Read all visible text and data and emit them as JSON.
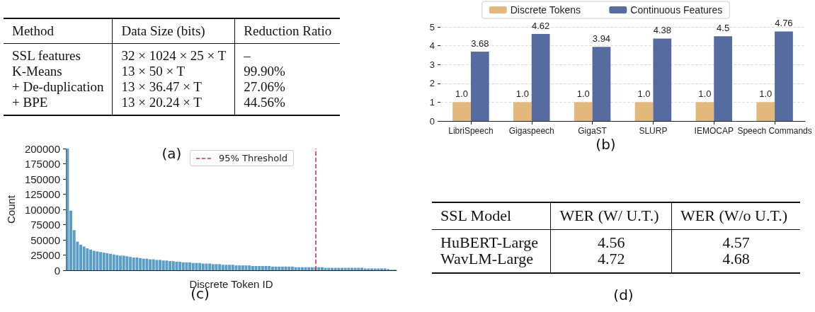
{
  "chart_data": [
    {
      "type": "other",
      "categories": [
        "Method",
        "Data Size (bits)",
        "Reduction Ratio"
      ],
      "cell_labels": [
        [
          "SSL features",
          "32 × 1024 × 25 × T",
          "–"
        ],
        [
          "K-Means",
          "13 × 50 × T",
          "99.90%"
        ],
        [
          "+ De-duplication",
          "13 × 36.47 × T",
          "27.06%"
        ],
        [
          "+ BPE",
          "13 × 20.24 × T",
          "44.56%"
        ]
      ],
      "annotations": [
        "(a)"
      ]
    },
    {
      "type": "bar",
      "categories": [
        "LibriSpeech",
        "Gigaspeech",
        "GigaST",
        "SLURP",
        "IEMOCAP",
        "Speech Commands"
      ],
      "series": [
        {
          "name": "Discrete Tokens",
          "color": "#e3b87c",
          "values": [
            1.0,
            1.0,
            1.0,
            1.0,
            1.0,
            1.0
          ],
          "value_labels": [
            "1.0",
            "1.0",
            "1.0",
            "1.0",
            "1.0",
            "1.0"
          ]
        },
        {
          "name": "Continuous Features",
          "color": "#566b9f",
          "values": [
            3.68,
            4.62,
            3.94,
            4.38,
            4.5,
            4.76
          ],
          "value_labels": [
            "3.68",
            "4.62",
            "3.94",
            "4.38",
            "4.5",
            "4.76"
          ]
        }
      ],
      "ylim": [
        0,
        5
      ],
      "yticks": [
        0,
        1,
        2,
        3,
        4,
        5
      ],
      "grid": "y",
      "legend": "top",
      "annotations": [
        "(b)"
      ]
    },
    {
      "type": "bar",
      "categories": [
        null,
        null,
        null,
        null,
        null,
        null,
        null,
        null,
        null,
        null,
        null,
        null,
        null,
        null,
        null,
        null,
        null,
        null,
        null,
        null,
        null,
        null,
        null,
        null,
        null,
        null,
        null,
        null,
        null,
        null,
        null,
        null,
        null,
        null,
        null,
        null,
        null,
        null,
        null,
        null,
        null,
        null,
        null,
        null,
        null,
        null,
        null,
        null,
        null,
        null,
        null,
        null,
        null,
        null,
        null,
        null,
        null,
        null,
        null,
        null,
        null,
        null,
        null,
        null,
        null,
        null,
        null,
        null,
        null,
        null,
        null,
        null,
        null,
        null,
        null,
        null,
        null,
        null,
        null,
        null,
        null,
        null,
        null,
        null,
        null,
        null,
        null,
        null,
        null,
        null,
        null,
        null,
        null,
        null,
        null,
        null,
        null,
        null,
        null,
        null
      ],
      "values": [
        200000,
        98000,
        66000,
        47000,
        42000,
        39000,
        36000,
        34000,
        32000,
        31000,
        30000,
        29000,
        28000,
        27000,
        26000,
        25000,
        24000,
        24000,
        23000,
        22000,
        21000,
        21000,
        20000,
        19000,
        19000,
        18000,
        18000,
        17000,
        17000,
        16000,
        16000,
        15000,
        15000,
        14000,
        14000,
        13000,
        13000,
        13000,
        12000,
        12000,
        12000,
        11000,
        11000,
        11000,
        10000,
        10000,
        10000,
        9000,
        9000,
        9000,
        9000,
        8000,
        8000,
        8000,
        8000,
        8000,
        7000,
        7000,
        7000,
        7000,
        7000,
        7000,
        6000,
        6000,
        6000,
        6000,
        6000,
        6000,
        6000,
        5000,
        5000,
        5000,
        5000,
        5000,
        5000,
        5000,
        5000,
        5000,
        4000,
        4000,
        4000,
        4000,
        4000,
        4000,
        4000,
        4000,
        4000,
        4000,
        4000,
        4000,
        3000,
        3000,
        3000,
        3000,
        3000,
        3000,
        3000,
        2000,
        1000,
        1000
      ],
      "color": "#5b9cc9",
      "xlabel": "Discrete Token ID",
      "ylabel": "Count",
      "ylim": [
        0,
        200000
      ],
      "yticks": [
        0,
        25000,
        50000,
        75000,
        100000,
        125000,
        150000,
        175000,
        200000
      ],
      "tick_labels": "y",
      "annotations": [
        "(c)",
        "95% Threshold"
      ]
    },
    {
      "type": "other",
      "categories": [
        "SSL Model",
        "WER (W/ U.T.)",
        "WER (W/o U.T.)"
      ],
      "cell_labels": [
        [
          "HuBERT-Large",
          "4.56",
          "4.57"
        ],
        [
          "WavLM-Large",
          "4.72",
          "4.68"
        ]
      ],
      "annotations": [
        "(d)"
      ]
    }
  ]
}
